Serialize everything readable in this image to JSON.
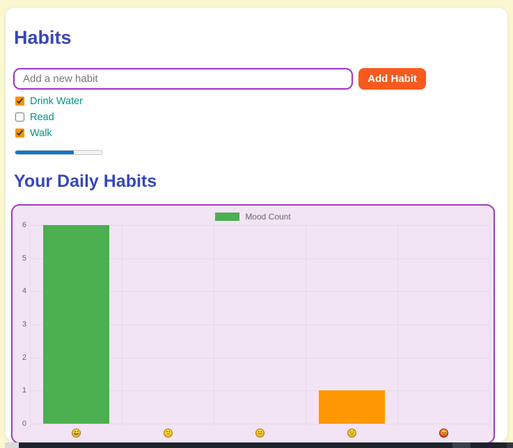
{
  "theme": {
    "page_bg": "#FBF8CF",
    "heading_indigo": "#3847B8",
    "accent_purple": "#A22FC9",
    "button_orange": "#F85A1E",
    "habit_teal": "#009688",
    "checkbox_orange": "#F59300",
    "progress_blue": "#0D76D1",
    "panel_bg": "#F2E4F5",
    "panel_border": "#A238BC",
    "chart_green": "#4CAF50",
    "chart_orange": "#FF9800"
  },
  "header": {
    "title": "Habits"
  },
  "habit_form": {
    "input_placeholder": "Add a new habit",
    "input_value": "",
    "add_button_label": "Add Habit"
  },
  "habits": [
    {
      "label": "Drink Water",
      "checked": true
    },
    {
      "label": "Read",
      "checked": false
    },
    {
      "label": "Walk",
      "checked": true
    }
  ],
  "progress": {
    "percent": 67,
    "max": 100
  },
  "section": {
    "title": "Your Daily Habits"
  },
  "chart_data": {
    "type": "bar",
    "title": "",
    "xlabel": "",
    "ylabel": "",
    "legend": [
      {
        "label": "Mood Count",
        "color": "#4CAF50"
      }
    ],
    "legend_position": "top",
    "categories": [
      "😄",
      "🙂",
      "😐",
      "😟",
      "😡"
    ],
    "category_colors": [
      "#F0B429",
      "#F0B429",
      "#F0B429",
      "#F0B429",
      "#D7362A"
    ],
    "values": [
      6,
      0,
      0,
      1,
      0
    ],
    "bar_colors": [
      "#4CAF50",
      "#4CAF50",
      "#4CAF50",
      "#FF9800",
      "#4CAF50"
    ],
    "ylim": [
      0,
      6
    ],
    "yticks": [
      0,
      1,
      2,
      3,
      4,
      5,
      6
    ],
    "grid": true
  }
}
